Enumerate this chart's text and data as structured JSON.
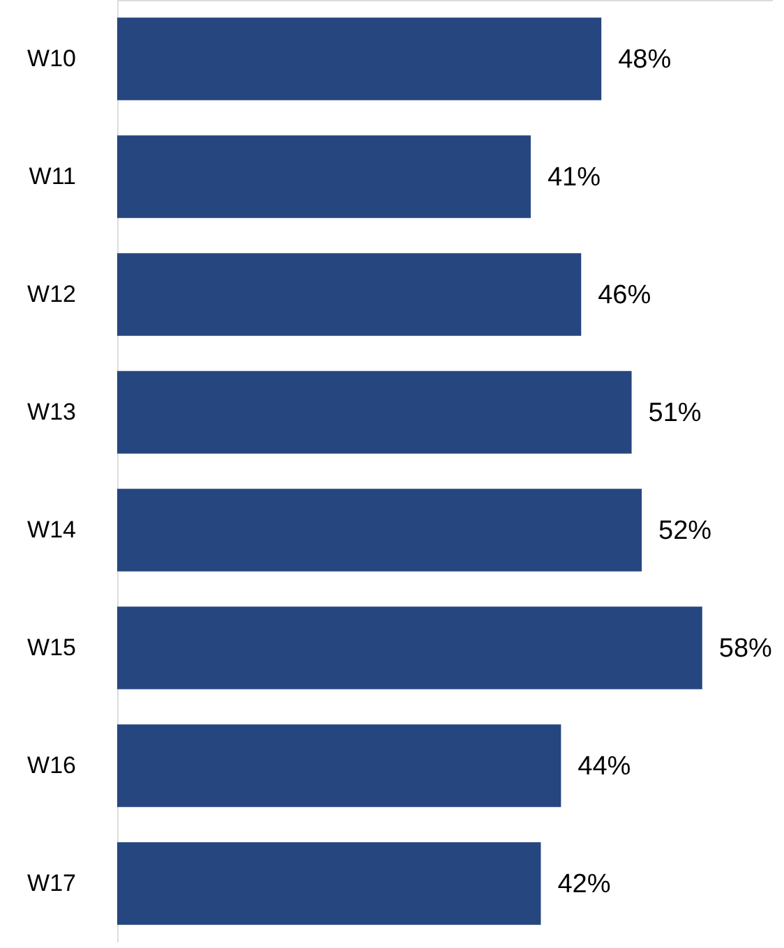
{
  "chart_data": {
    "type": "bar",
    "orientation": "horizontal",
    "categories": [
      "W10",
      "W11",
      "W12",
      "W13",
      "W14",
      "W15",
      "W16",
      "W17"
    ],
    "values": [
      48,
      41,
      46,
      51,
      52,
      58,
      44,
      42
    ],
    "value_labels": [
      "48%",
      "41%",
      "46%",
      "51%",
      "52%",
      "58%",
      "44%",
      "42%"
    ],
    "color": "#26467f",
    "xlim": [
      0,
      65
    ],
    "tick_labels": "y"
  }
}
